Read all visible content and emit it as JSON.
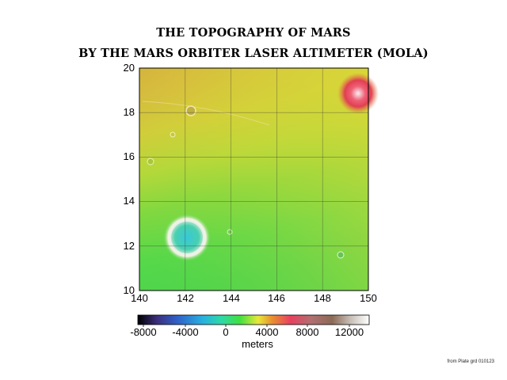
{
  "title_line1": "THE TOPOGRAPHY OF MARS",
  "title_line2": "BY THE MARS ORBITER LASER ALTIMETER (MOLA)",
  "map": {
    "x_ticks": [
      "140",
      "142",
      "144",
      "146",
      "148",
      "150"
    ],
    "y_ticks": [
      "20",
      "18",
      "16",
      "14",
      "12",
      "10"
    ],
    "x_range": [
      140,
      150
    ],
    "y_range": [
      10,
      20
    ],
    "grid": true
  },
  "colorbar": {
    "ticks": [
      "-8000",
      "-4000",
      "0",
      "4000",
      "8000",
      "12000"
    ],
    "label": "meters",
    "colors": [
      "#000000",
      "#3b2d7a",
      "#2e7ef0",
      "#2ed8c0",
      "#3ee04a",
      "#e8e83a",
      "#e8a030",
      "#e84060",
      "#b0707a",
      "#8c6a56",
      "#c8c0b8",
      "#ffffff"
    ]
  },
  "credit": "from Plate grd 010123"
}
